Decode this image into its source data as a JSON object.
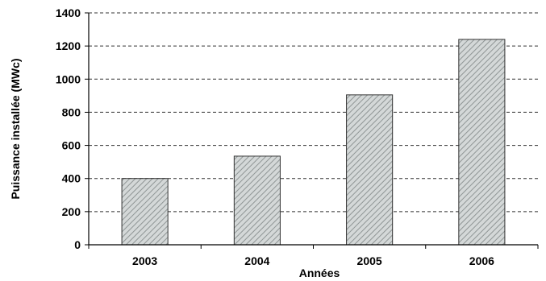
{
  "chart_data": {
    "type": "bar",
    "categories": [
      "2003",
      "2004",
      "2005",
      "2006"
    ],
    "values": [
      400,
      535,
      905,
      1240
    ],
    "title": "",
    "xlabel": "Années",
    "ylabel": "Puissance installée (MWc)",
    "ylim": [
      0,
      1400
    ],
    "yticks": [
      "0",
      "200",
      "400",
      "600",
      "800",
      "1000",
      "1200",
      "1400"
    ],
    "grid": true,
    "legend": "none",
    "bar_fill": "#d4d8d8",
    "bar_hatch": "#8f9595",
    "bar_edge": "#333333",
    "grid_color": "#333333"
  }
}
